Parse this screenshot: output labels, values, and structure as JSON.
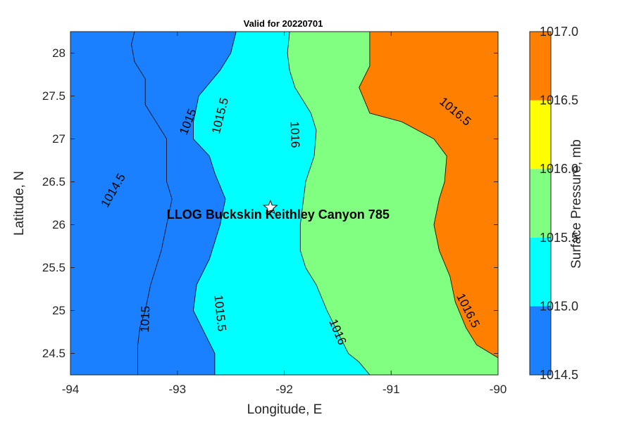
{
  "chart_data": {
    "type": "heatmap",
    "subtype": "filled-contour map",
    "title": "Valid for 20220701",
    "xlabel": "Longitude, E",
    "ylabel": "Latitude, N",
    "xlim": [
      -94,
      -90
    ],
    "ylim": [
      24.25,
      28.25
    ],
    "xticks": [
      "-94",
      "-93",
      "-92",
      "-91",
      "-90"
    ],
    "xtick_values": [
      -94,
      -93,
      -92,
      -91,
      -90
    ],
    "yticks": [
      "24.5",
      "25",
      "25.5",
      "26",
      "26.5",
      "27",
      "27.5",
      "28"
    ],
    "ytick_values": [
      24.5,
      25,
      25.5,
      26,
      26.5,
      27,
      27.5,
      28
    ],
    "grid": false,
    "contour_levels": [
      1014.5,
      1015,
      1015.5,
      1016,
      1016.5
    ],
    "fill_bands": [
      {
        "from": 1014.5,
        "to": 1015.0,
        "color": "#1a80ff"
      },
      {
        "from": 1015.0,
        "to": 1015.5,
        "color": "#00ffff"
      },
      {
        "from": 1015.5,
        "to": 1016.0,
        "color": "#80ff80"
      },
      {
        "from": 1016.0,
        "to": 1016.5,
        "color": "#ffff00"
      },
      {
        "from": 1016.5,
        "to": 1017.0,
        "color": "#ff8000"
      }
    ],
    "contours": [
      {
        "level": 1015.0,
        "points": [
          [
            -93.4,
            28.25
          ],
          [
            -93.43,
            28.1
          ],
          [
            -93.4,
            27.9
          ],
          [
            -93.3,
            27.7
          ],
          [
            -93.3,
            27.4
          ],
          [
            -93.2,
            27.2
          ],
          [
            -93.1,
            27.0
          ],
          [
            -93.1,
            26.8
          ],
          [
            -93.1,
            26.5
          ],
          [
            -93.05,
            26.3
          ],
          [
            -93.1,
            26.0
          ],
          [
            -93.15,
            25.7
          ],
          [
            -93.25,
            25.3
          ],
          [
            -93.3,
            25.0
          ],
          [
            -93.35,
            24.8
          ],
          [
            -93.37,
            24.6
          ],
          [
            -93.37,
            24.25
          ]
        ]
      },
      {
        "level": 1015.5,
        "points": [
          [
            -92.45,
            28.25
          ],
          [
            -92.5,
            28.0
          ],
          [
            -92.6,
            27.8
          ],
          [
            -92.8,
            27.5
          ],
          [
            -92.85,
            27.2
          ],
          [
            -92.85,
            27.0
          ],
          [
            -92.7,
            26.8
          ],
          [
            -92.65,
            26.6
          ],
          [
            -92.55,
            26.3
          ],
          [
            -92.6,
            26.0
          ],
          [
            -92.7,
            25.6
          ],
          [
            -92.82,
            25.3
          ],
          [
            -92.85,
            25.0
          ],
          [
            -92.75,
            24.75
          ],
          [
            -92.65,
            24.5
          ],
          [
            -92.65,
            24.25
          ]
        ]
      },
      {
        "level": 1016.0,
        "points": [
          [
            -91.95,
            28.25
          ],
          [
            -91.97,
            28.0
          ],
          [
            -91.95,
            27.8
          ],
          [
            -91.9,
            27.6
          ],
          [
            -91.75,
            27.3
          ],
          [
            -91.7,
            27.1
          ],
          [
            -91.72,
            26.8
          ],
          [
            -91.8,
            26.5
          ],
          [
            -91.85,
            26.0
          ],
          [
            -91.85,
            25.7
          ],
          [
            -91.8,
            25.5
          ],
          [
            -91.7,
            25.3
          ],
          [
            -91.6,
            25.0
          ],
          [
            -91.5,
            24.75
          ],
          [
            -91.4,
            24.5
          ],
          [
            -91.3,
            24.4
          ],
          [
            -91.2,
            24.25
          ]
        ]
      },
      {
        "level": 1016.5,
        "points": [
          [
            -91.2,
            28.25
          ],
          [
            -91.2,
            28.0
          ],
          [
            -91.2,
            27.85
          ],
          [
            -91.3,
            27.6
          ],
          [
            -91.2,
            27.3
          ],
          [
            -90.9,
            27.2
          ],
          [
            -90.6,
            27.0
          ],
          [
            -90.48,
            26.8
          ],
          [
            -90.5,
            26.5
          ],
          [
            -90.55,
            26.3
          ],
          [
            -90.6,
            26.0
          ],
          [
            -90.55,
            25.7
          ],
          [
            -90.45,
            25.4
          ],
          [
            -90.4,
            25.1
          ],
          [
            -90.3,
            24.8
          ],
          [
            -90.2,
            24.6
          ],
          [
            -90.0,
            24.45
          ]
        ]
      }
    ],
    "contour_labels": [
      {
        "text": "1014.5",
        "x": -93.6,
        "y": 26.4,
        "angle": -60
      },
      {
        "text": "1015",
        "x": -92.9,
        "y": 27.2,
        "angle": -68
      },
      {
        "text": "1015",
        "x": -93.3,
        "y": 24.9,
        "angle": -88
      },
      {
        "text": "1015.5",
        "x": -92.6,
        "y": 27.27,
        "angle": -76
      },
      {
        "text": "1015.5",
        "x": -92.6,
        "y": 24.97,
        "angle": 84
      },
      {
        "text": "1016",
        "x": -91.9,
        "y": 27.05,
        "angle": 88
      },
      {
        "text": "1016",
        "x": -91.5,
        "y": 24.75,
        "angle": 67
      },
      {
        "text": "1016.5",
        "x": -90.4,
        "y": 27.32,
        "angle": 40
      },
      {
        "text": "1016.5",
        "x": -90.28,
        "y": 25.0,
        "angle": 63
      }
    ],
    "marker": {
      "label": "LLOG Buckskin Keithley Canyon 785",
      "lon": -92.13,
      "lat": 26.2,
      "symbol": "star"
    },
    "colorbar": {
      "label": "Surface Pressure, mb",
      "ticks": [
        "1014.5",
        "1015.0",
        "1015.5",
        "1016.0",
        "1016.5",
        "1017.0"
      ],
      "tick_values": [
        1014.5,
        1015.0,
        1015.5,
        1016.0,
        1016.5,
        1017.0
      ],
      "range": [
        1014.5,
        1017.0
      ]
    }
  }
}
